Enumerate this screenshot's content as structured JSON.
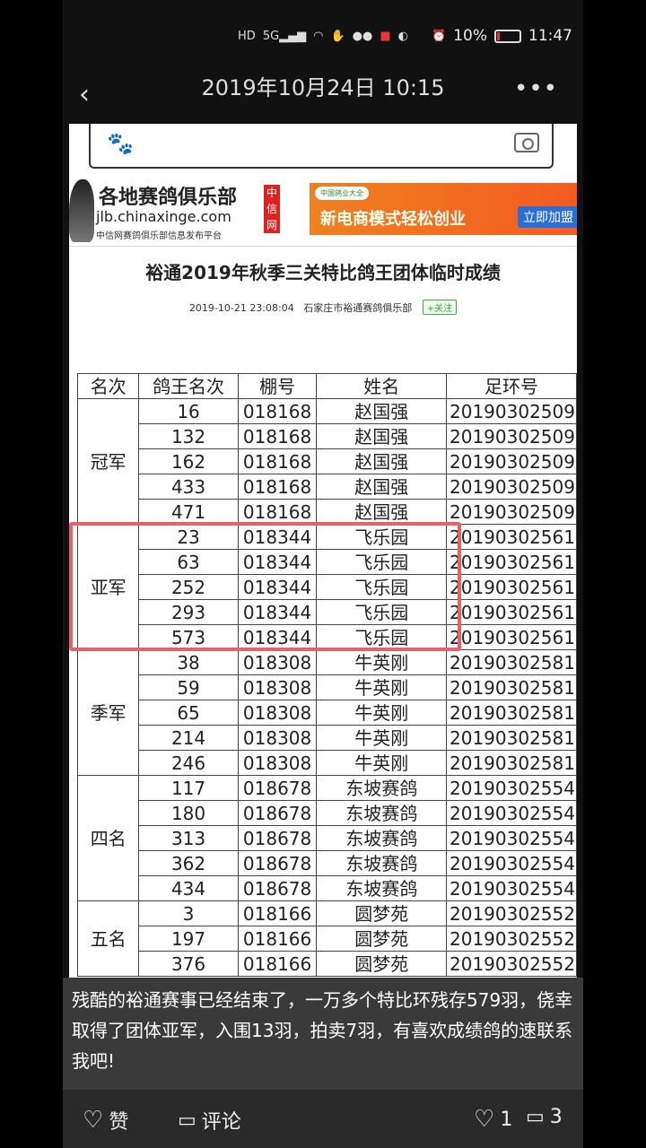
{
  "status_bar": {
    "icons": [
      "hd-icon",
      "5g-signal-icon",
      "wifi-icon",
      "hand-icon",
      "wechat-icon",
      "app-icon",
      "browser-icon",
      "alarm-icon"
    ],
    "battery": "10%",
    "time": "11:47",
    "battery_color": "#e33333"
  },
  "header": {
    "title": "2019年10月24日 10:15"
  },
  "page": {
    "logo_cn": "各地赛鸽俱乐部",
    "logo_url": "jlb.chinaxinge.com",
    "logo_sub": "中信网赛鸽俱乐部信息发布平台",
    "badge": "中信网",
    "ad": {
      "small": "中国鸽业大全",
      "text": "新电商模式轻松创业",
      "button": "立即加盟"
    },
    "article_title": "裕通2019年秋季三关特比鸽王团体临时成绩",
    "date": "2019-10-21 23:08:04",
    "club": "石家庄市裕通赛鸽俱乐部",
    "follow": "+关注",
    "table": {
      "headers": [
        "名次",
        "鸽王名次",
        "棚号",
        "姓名",
        "足环号"
      ],
      "groups": [
        {
          "rank": "冠军",
          "rows": [
            [
              "16",
              "018168",
              "赵国强",
              "20190302509"
            ],
            [
              "132",
              "018168",
              "赵国强",
              "20190302509"
            ],
            [
              "162",
              "018168",
              "赵国强",
              "20190302509"
            ],
            [
              "433",
              "018168",
              "赵国强",
              "20190302509"
            ],
            [
              "471",
              "018168",
              "赵国强",
              "20190302509"
            ]
          ]
        },
        {
          "rank": "亚军",
          "rows": [
            [
              "23",
              "018344",
              "飞乐园",
              "20190302561"
            ],
            [
              "63",
              "018344",
              "飞乐园",
              "20190302561"
            ],
            [
              "252",
              "018344",
              "飞乐园",
              "20190302561"
            ],
            [
              "293",
              "018344",
              "飞乐园",
              "20190302561"
            ],
            [
              "573",
              "018344",
              "飞乐园",
              "20190302561"
            ]
          ]
        },
        {
          "rank": "季军",
          "rows": [
            [
              "38",
              "018308",
              "牛英刚",
              "20190302581"
            ],
            [
              "59",
              "018308",
              "牛英刚",
              "20190302581"
            ],
            [
              "65",
              "018308",
              "牛英刚",
              "20190302581"
            ],
            [
              "214",
              "018308",
              "牛英刚",
              "20190302581"
            ],
            [
              "246",
              "018308",
              "牛英刚",
              "20190302581"
            ]
          ]
        },
        {
          "rank": "四名",
          "rows": [
            [
              "117",
              "018678",
              "东坡赛鸽",
              "20190302554"
            ],
            [
              "180",
              "018678",
              "东坡赛鸽",
              "20190302554"
            ],
            [
              "313",
              "018678",
              "东坡赛鸽",
              "20190302554"
            ],
            [
              "362",
              "018678",
              "东坡赛鸽",
              "20190302554"
            ],
            [
              "434",
              "018678",
              "东坡赛鸽",
              "20190302554"
            ]
          ]
        },
        {
          "rank": "五名",
          "rows": [
            [
              "3",
              "018166",
              "圆梦苑",
              "20190302552"
            ],
            [
              "197",
              "018166",
              "圆梦苑",
              "20190302552"
            ],
            [
              "376",
              "018166",
              "圆梦苑",
              "20190302552"
            ]
          ]
        }
      ]
    }
  },
  "caption": "残酷的裕通赛事已经结束了，一万多个特比环残存579羽，侥幸取得了团体亚军，入围13羽，拍卖7羽，有喜欢成绩鸽的速联系我吧!",
  "highlight_color": "#e8606a",
  "bottom_bar": {
    "like": "赞",
    "comment": "评论",
    "like_count": "1",
    "comment_count": "3"
  }
}
